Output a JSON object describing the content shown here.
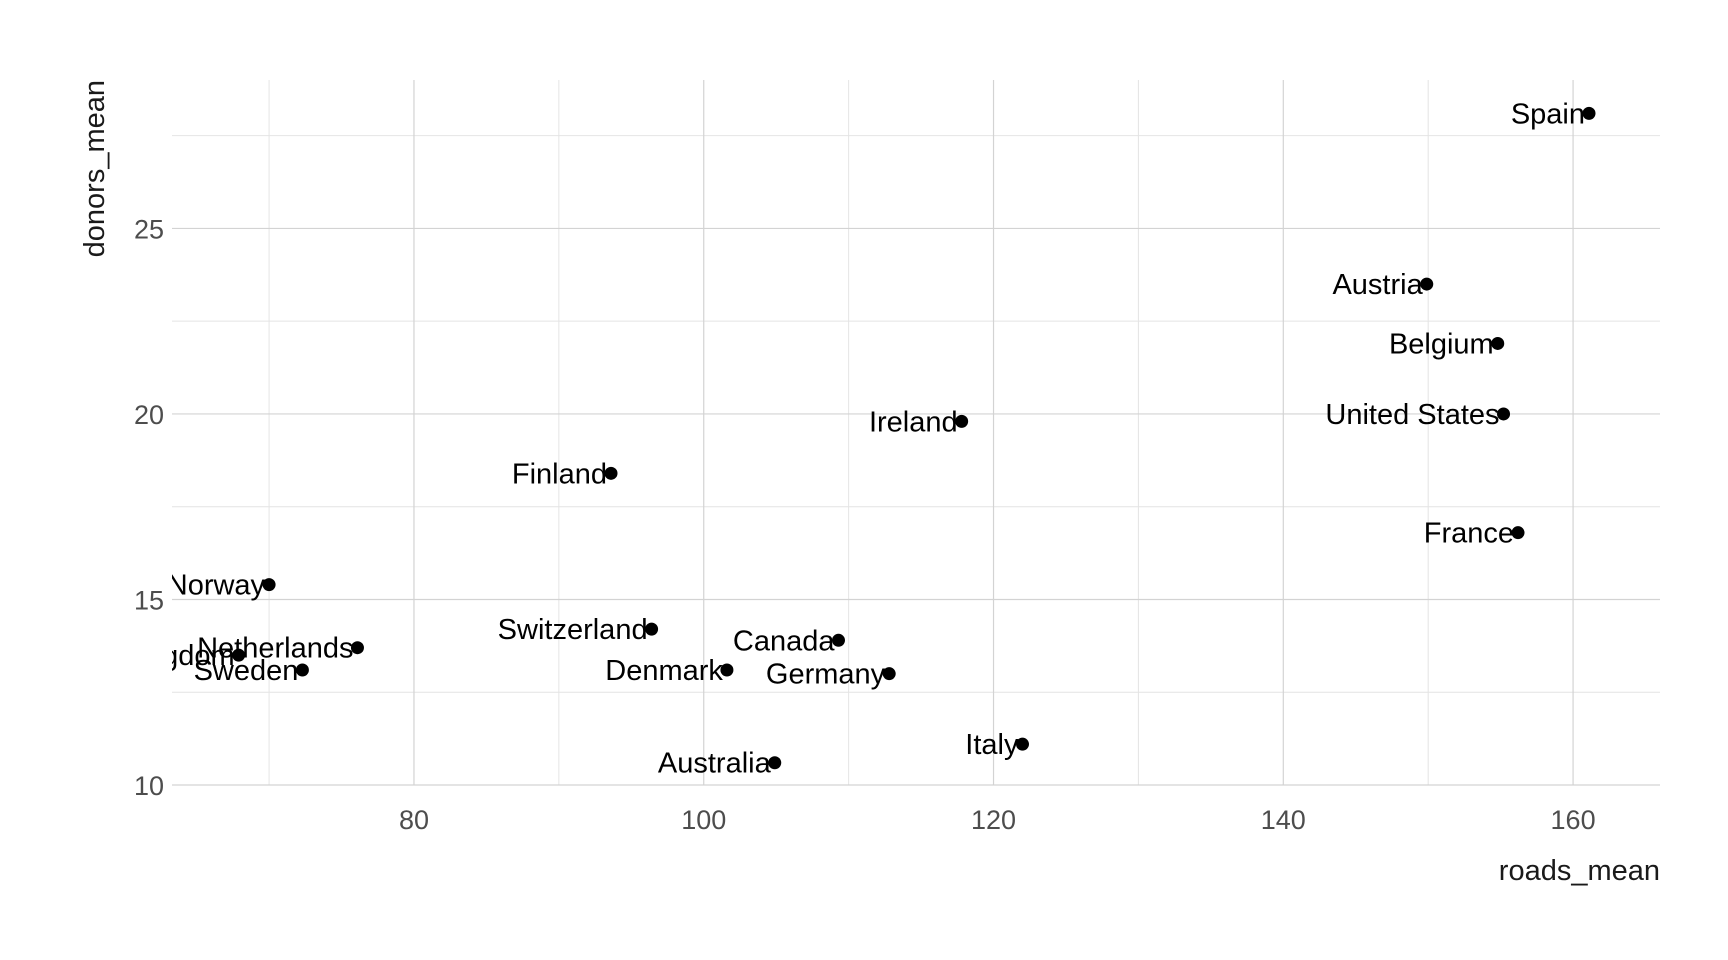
{
  "chart_data": {
    "type": "scatter",
    "title": "",
    "xlabel": "roads_mean",
    "ylabel": "donors_mean",
    "xlim": [
      63.3,
      166
    ],
    "ylim": [
      10,
      29
    ],
    "x_ticks": [
      80,
      100,
      120,
      140,
      160
    ],
    "y_ticks": [
      10,
      15,
      20,
      25
    ],
    "grid": true,
    "legend": "none",
    "point_color": "#000000",
    "points": [
      {
        "label": "Spain",
        "x": 161.1,
        "y": 28.1
      },
      {
        "label": "Austria",
        "x": 149.9,
        "y": 23.5
      },
      {
        "label": "Belgium",
        "x": 154.8,
        "y": 21.9
      },
      {
        "label": "United States",
        "x": 155.2,
        "y": 20.0
      },
      {
        "label": "Ireland",
        "x": 117.8,
        "y": 19.8
      },
      {
        "label": "Finland",
        "x": 93.6,
        "y": 18.4
      },
      {
        "label": "France",
        "x": 156.2,
        "y": 16.8
      },
      {
        "label": "Norway",
        "x": 70.0,
        "y": 15.4
      },
      {
        "label": "Switzerland",
        "x": 96.4,
        "y": 14.2
      },
      {
        "label": "Canada",
        "x": 109.3,
        "y": 13.9
      },
      {
        "label": "Netherlands",
        "x": 76.1,
        "y": 13.7
      },
      {
        "label": "United Kingdom",
        "x": 67.9,
        "y": 13.5
      },
      {
        "label": "Sweden",
        "x": 72.3,
        "y": 13.1
      },
      {
        "label": "Denmark",
        "x": 101.6,
        "y": 13.1
      },
      {
        "label": "Germany",
        "x": 112.8,
        "y": 13.0
      },
      {
        "label": "Italy",
        "x": 122.0,
        "y": 11.1
      },
      {
        "label": "Australia",
        "x": 104.9,
        "y": 10.6
      }
    ]
  }
}
